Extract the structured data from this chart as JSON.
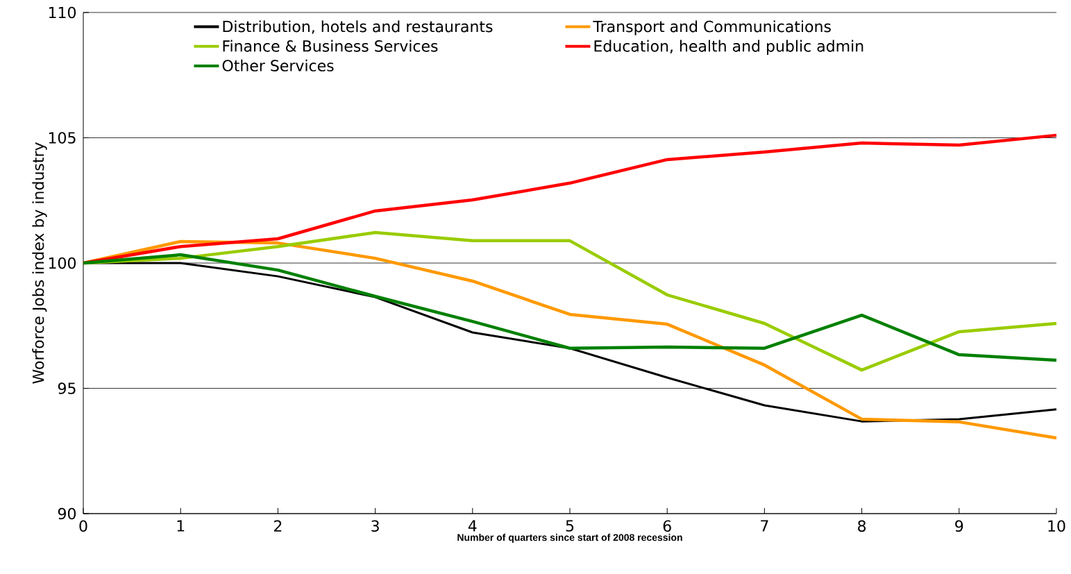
{
  "chart_data": {
    "type": "line",
    "xlabel": "Number of quarters since start of 2008 recession",
    "ylabel": "Worforce Jobs index by industry",
    "x": [
      0,
      1,
      2,
      3,
      4,
      5,
      6,
      7,
      8,
      9,
      10
    ],
    "series": [
      {
        "name": "Distribution, hotels and restaurants",
        "color": "#000000",
        "values": [
          100,
          100,
          99.47,
          98.64,
          97.23,
          96.6,
          95.43,
          94.32,
          93.68,
          93.77,
          94.16
        ]
      },
      {
        "name": "Transport and Communications",
        "color": "#ff9900",
        "values": [
          100,
          100.86,
          100.8,
          100.19,
          99.28,
          97.95,
          97.56,
          95.93,
          93.77,
          93.66,
          93.02
        ]
      },
      {
        "name": "Finance & Business Services",
        "color": "#99cc00",
        "values": [
          100,
          100.19,
          100.66,
          101.22,
          100.89,
          100.89,
          98.73,
          97.59,
          95.73,
          97.26,
          97.59
        ]
      },
      {
        "name": "Education, health and public admin",
        "color": "#ff0000",
        "values": [
          100,
          100.66,
          100.97,
          102.08,
          102.52,
          103.19,
          104.13,
          104.43,
          104.79,
          104.71,
          105.1
        ]
      },
      {
        "name": "Other Services",
        "color": "#008000",
        "values": [
          100,
          100.33,
          99.72,
          98.67,
          97.67,
          96.6,
          96.65,
          96.6,
          97.92,
          96.34,
          96.12
        ]
      }
    ],
    "xlim": [
      0,
      10
    ],
    "xticks": [
      0,
      1,
      2,
      3,
      4,
      5,
      6,
      7,
      8,
      9,
      10
    ],
    "ylim": [
      90,
      110
    ],
    "yticks": [
      90,
      95,
      100,
      105,
      110
    ],
    "grid": "y",
    "legend": "top",
    "marker": "none",
    "line_style": "solid"
  }
}
